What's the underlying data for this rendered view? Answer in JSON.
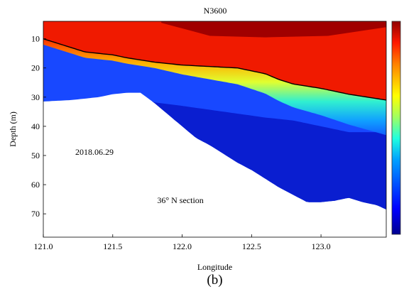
{
  "chart_data": {
    "type": "heatmap",
    "title": "N3600",
    "xlabel": "Longitude",
    "ylabel": "Depth (m)",
    "panel_label": "(b)",
    "annotations": {
      "date": "2018.06.29",
      "section": "36° N section"
    },
    "xlim": [
      121.0,
      123.47
    ],
    "ylim": [
      4,
      78
    ],
    "y_reversed": true,
    "x_ticks": [
      121.0,
      121.5,
      122.0,
      122.5,
      123.0
    ],
    "x_tick_labels": [
      "121.0",
      "121.5",
      "122.0",
      "122.5",
      "123.0"
    ],
    "y_ticks": [
      10,
      20,
      30,
      40,
      50,
      60,
      70
    ],
    "y_tick_labels": [
      "10",
      "20",
      "30",
      "40",
      "50",
      "60",
      "70"
    ],
    "colormap": "jet",
    "colorbar": {
      "position": "right",
      "ticks": [],
      "tick_labels": []
    },
    "grid": false,
    "bottom_depth": {
      "x": [
        121.0,
        121.2,
        121.4,
        121.5,
        121.6,
        121.7,
        121.8,
        121.9,
        122.0,
        122.1,
        122.2,
        122.3,
        122.4,
        122.5,
        122.6,
        122.7,
        122.8,
        122.9,
        123.0,
        123.1,
        123.2,
        123.3,
        123.4,
        123.47
      ],
      "y": [
        31.5,
        31.0,
        30.0,
        29.0,
        28.5,
        28.5,
        32.0,
        36.0,
        40.0,
        44.0,
        46.5,
        49.5,
        52.5,
        55.0,
        58.0,
        61.0,
        63.5,
        66.0,
        66.0,
        65.5,
        64.5,
        66.0,
        67.0,
        68.5
      ]
    },
    "thermocline_depth": {
      "x": [
        121.0,
        121.2,
        121.3,
        121.5,
        121.6,
        121.8,
        122.0,
        122.2,
        122.4,
        122.5,
        122.6,
        122.7,
        122.8,
        123.0,
        123.2,
        123.47
      ],
      "y": [
        10.0,
        13.0,
        14.5,
        15.5,
        16.5,
        18.0,
        19.0,
        19.5,
        20.0,
        21.0,
        22.0,
        24.0,
        25.5,
        27.0,
        29.0,
        31.0
      ]
    },
    "deep_depth": {
      "x": [
        121.0,
        121.5,
        122.0,
        122.3,
        122.6,
        122.8,
        123.0,
        123.2,
        123.47
      ],
      "y": [
        32.0,
        30.0,
        33.0,
        35.0,
        37.0,
        38.0,
        40.0,
        42.0,
        42.0
      ]
    },
    "surface_warm_max": {
      "x": [
        121.85,
        122.2,
        122.6,
        123.05,
        123.47
      ],
      "y": [
        4.5,
        9.0,
        9.5,
        9.0,
        6.0
      ]
    }
  }
}
